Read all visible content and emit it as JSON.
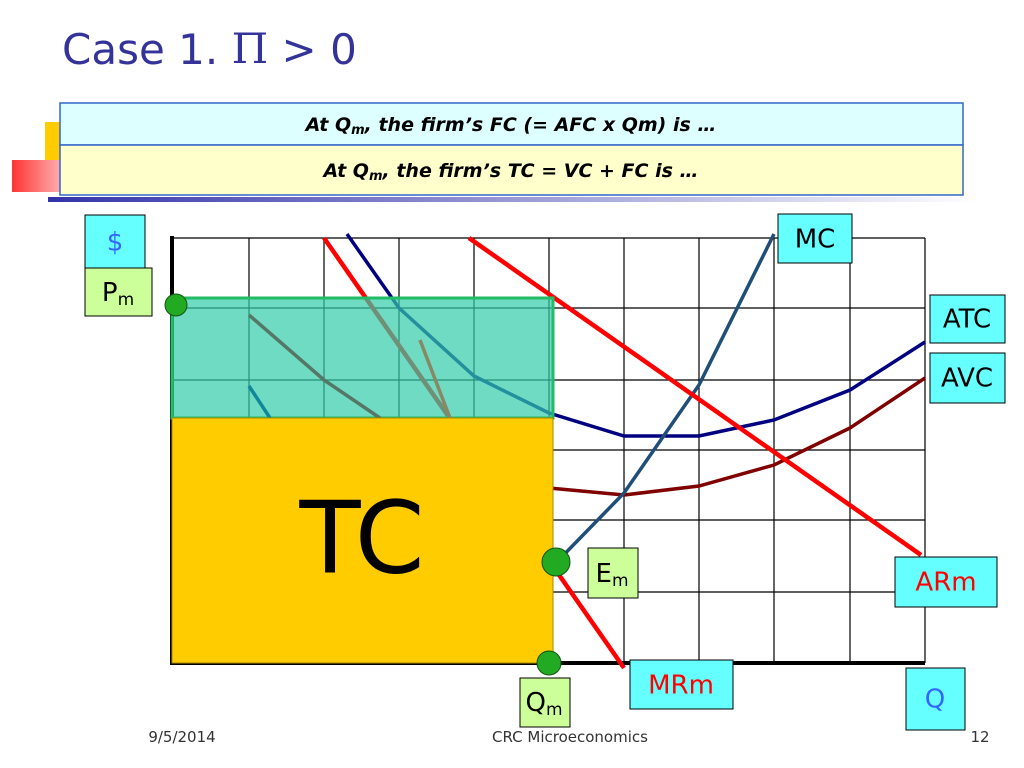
{
  "title": {
    "text": "Case 1. ",
    "symbol": "Π",
    "rest": " > 0"
  },
  "callouts": [
    {
      "before": "At Q",
      "sub": "m",
      "after": ", the firm’s FC (= AFC x Qm) is …"
    },
    {
      "before": "At Q",
      "sub": "m",
      "after": ", the firm’s TC = VC + FC is …"
    }
  ],
  "labels": {
    "dollar": "$",
    "price": {
      "text": "P",
      "sub": "m"
    },
    "mc": "MC",
    "atc": "ATC",
    "avc": "AVC",
    "tc": "TC",
    "equilibrium": {
      "text": "E",
      "sub": "m"
    },
    "ar": "ARm",
    "mr": "MRm",
    "q": "Q",
    "quantity": {
      "text": "Q",
      "sub": "m"
    }
  },
  "footer": {
    "date": "9/5/2014",
    "course": "CRC Microeconomics",
    "page": "12"
  }
}
